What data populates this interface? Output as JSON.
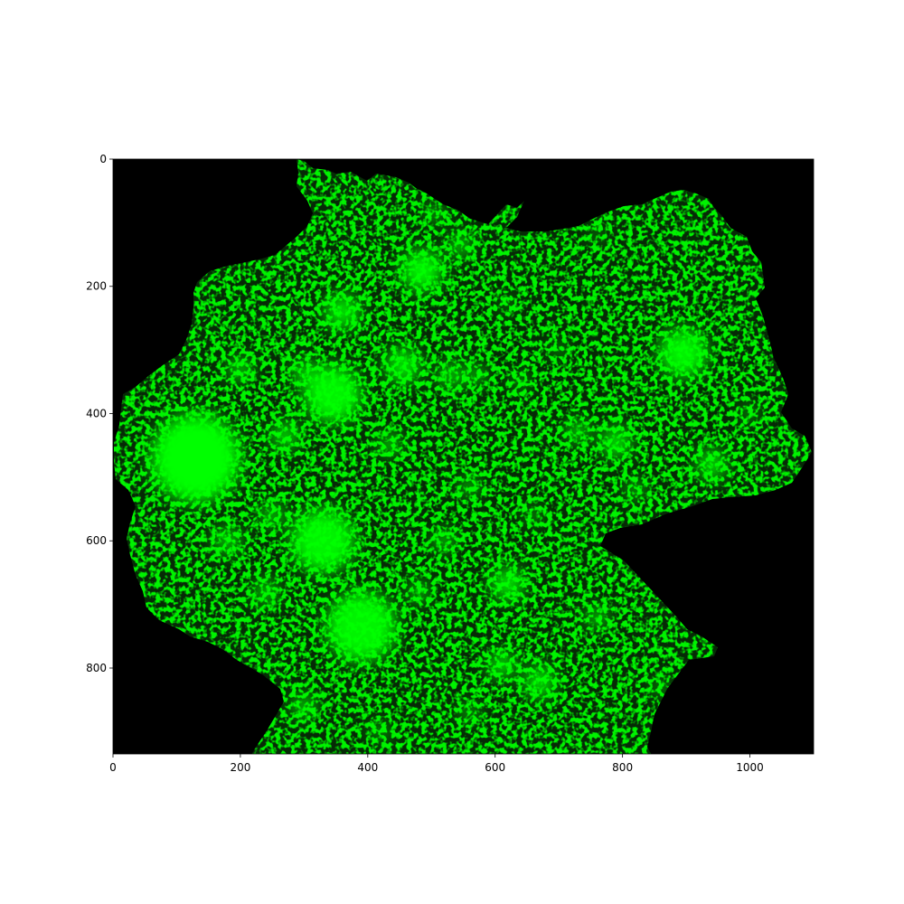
{
  "chart_data": {
    "type": "heatmap",
    "title": "",
    "xlabel": "",
    "ylabel": "",
    "xlim": [
      0,
      1100
    ],
    "ylim": [
      935,
      0
    ],
    "xticks": [
      0,
      200,
      400,
      600,
      800,
      1000
    ],
    "yticks": [
      0,
      200,
      400,
      600,
      800
    ],
    "xtick_labels": [
      "0",
      "200",
      "400",
      "600",
      "800",
      "1000"
    ],
    "ytick_labels": [
      "0",
      "200",
      "400",
      "600",
      "800"
    ],
    "colormap": [
      "#000000",
      "#00ff00"
    ],
    "background_color": "#000000",
    "grid": false,
    "bright_clusters": [
      {
        "x": 130,
        "y": 470,
        "r": 70,
        "v": 1.0
      },
      {
        "x": 345,
        "y": 370,
        "r": 45,
        "v": 0.95
      },
      {
        "x": 330,
        "y": 600,
        "r": 50,
        "v": 0.95
      },
      {
        "x": 390,
        "y": 735,
        "r": 55,
        "v": 0.95
      },
      {
        "x": 485,
        "y": 175,
        "r": 32,
        "v": 0.95
      },
      {
        "x": 895,
        "y": 305,
        "r": 38,
        "v": 0.95
      },
      {
        "x": 360,
        "y": 240,
        "r": 28,
        "v": 0.85
      },
      {
        "x": 455,
        "y": 325,
        "r": 28,
        "v": 0.85
      },
      {
        "x": 545,
        "y": 135,
        "r": 18,
        "v": 0.8
      },
      {
        "x": 505,
        "y": 85,
        "r": 14,
        "v": 0.75
      },
      {
        "x": 790,
        "y": 445,
        "r": 24,
        "v": 0.85
      },
      {
        "x": 730,
        "y": 428,
        "r": 18,
        "v": 0.8
      },
      {
        "x": 940,
        "y": 480,
        "r": 24,
        "v": 0.8
      },
      {
        "x": 620,
        "y": 668,
        "r": 26,
        "v": 0.85
      },
      {
        "x": 610,
        "y": 795,
        "r": 22,
        "v": 0.8
      },
      {
        "x": 670,
        "y": 822,
        "r": 26,
        "v": 0.8
      },
      {
        "x": 270,
        "y": 435,
        "r": 22,
        "v": 0.8
      },
      {
        "x": 300,
        "y": 335,
        "r": 20,
        "v": 0.75
      },
      {
        "x": 530,
        "y": 340,
        "r": 20,
        "v": 0.75
      },
      {
        "x": 435,
        "y": 448,
        "r": 18,
        "v": 0.75
      },
      {
        "x": 570,
        "y": 340,
        "r": 16,
        "v": 0.7
      },
      {
        "x": 760,
        "y": 720,
        "r": 18,
        "v": 0.7
      },
      {
        "x": 520,
        "y": 600,
        "r": 18,
        "v": 0.7
      },
      {
        "x": 240,
        "y": 680,
        "r": 20,
        "v": 0.7
      },
      {
        "x": 300,
        "y": 860,
        "r": 20,
        "v": 0.7
      },
      {
        "x": 560,
        "y": 515,
        "r": 16,
        "v": 0.7
      },
      {
        "x": 640,
        "y": 350,
        "r": 14,
        "v": 0.6
      },
      {
        "x": 700,
        "y": 300,
        "r": 12,
        "v": 0.6
      },
      {
        "x": 820,
        "y": 520,
        "r": 16,
        "v": 0.65
      },
      {
        "x": 180,
        "y": 600,
        "r": 22,
        "v": 0.7
      },
      {
        "x": 200,
        "y": 330,
        "r": 20,
        "v": 0.7
      },
      {
        "x": 250,
        "y": 560,
        "r": 20,
        "v": 0.7
      },
      {
        "x": 480,
        "y": 680,
        "r": 18,
        "v": 0.65
      },
      {
        "x": 560,
        "y": 870,
        "r": 16,
        "v": 0.6
      },
      {
        "x": 860,
        "y": 830,
        "r": 14,
        "v": 0.55
      },
      {
        "x": 660,
        "y": 560,
        "r": 14,
        "v": 0.6
      },
      {
        "x": 1000,
        "y": 400,
        "r": 14,
        "v": 0.55
      },
      {
        "x": 620,
        "y": 230,
        "r": 12,
        "v": 0.5
      },
      {
        "x": 760,
        "y": 120,
        "r": 12,
        "v": 0.5
      },
      {
        "x": 420,
        "y": 900,
        "r": 16,
        "v": 0.55
      }
    ]
  }
}
